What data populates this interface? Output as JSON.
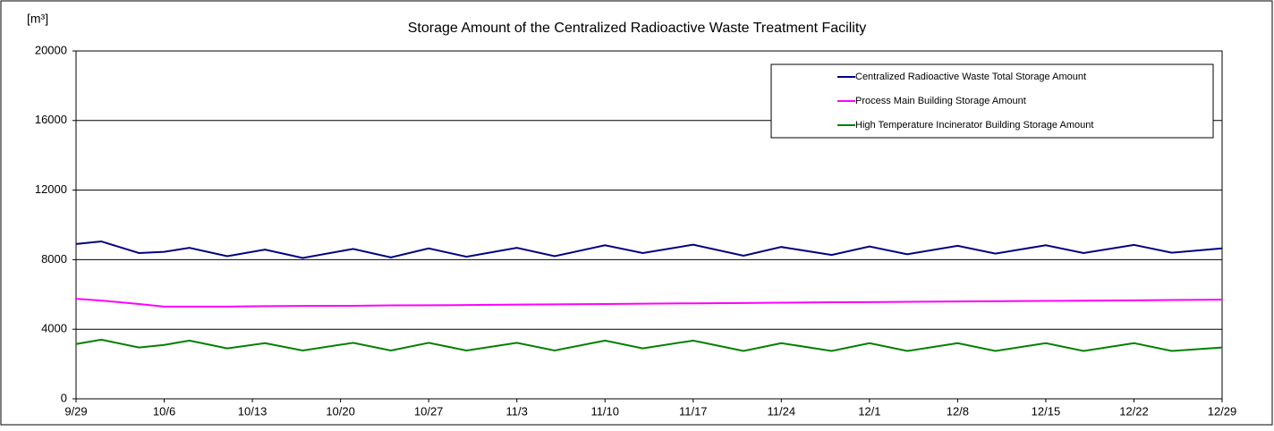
{
  "chart_data": {
    "type": "line",
    "title": "Storage Amount of the Centralized Radioactive Waste Treatment Facility",
    "y_label": "[m³]",
    "x": [
      0,
      2,
      5,
      7,
      9,
      12,
      15,
      18,
      22,
      25,
      28,
      31,
      35,
      38,
      42,
      45,
      49,
      53,
      56,
      60,
      63,
      66,
      70,
      73,
      77,
      80,
      84,
      87,
      91
    ],
    "xlim": [
      0,
      91
    ],
    "xticks": [
      {
        "value": 0,
        "label": "9/29"
      },
      {
        "value": 7,
        "label": "10/6"
      },
      {
        "value": 14,
        "label": "10/13"
      },
      {
        "value": 21,
        "label": "10/20"
      },
      {
        "value": 28,
        "label": "10/27"
      },
      {
        "value": 35,
        "label": "11/3"
      },
      {
        "value": 42,
        "label": "11/10"
      },
      {
        "value": 49,
        "label": "11/17"
      },
      {
        "value": 56,
        "label": "11/24"
      },
      {
        "value": 63,
        "label": "12/1"
      },
      {
        "value": 70,
        "label": "12/8"
      },
      {
        "value": 77,
        "label": "12/15"
      },
      {
        "value": 84,
        "label": "12/22"
      },
      {
        "value": 91,
        "label": "12/29"
      }
    ],
    "ylim": [
      0,
      20000
    ],
    "yticks": [
      0,
      4000,
      8000,
      12000,
      16000,
      20000
    ],
    "grid": true,
    "legend": "upper right",
    "series": [
      {
        "name": "Centralized Radioactive Waste Total Storage Amount",
        "color": "#000080",
        "values": [
          8900,
          9050,
          8380,
          8450,
          8680,
          8200,
          8580,
          8100,
          8620,
          8130,
          8650,
          8170,
          8680,
          8200,
          8830,
          8380,
          8860,
          8230,
          8730,
          8270,
          8760,
          8310,
          8800,
          8350,
          8830,
          8380,
          8850,
          8400,
          8650
        ]
      },
      {
        "name": "Process Main Building Storage Amount",
        "color": "#ff00ff",
        "values": [
          5750,
          5650,
          5450,
          5300,
          5300,
          5300,
          5330,
          5340,
          5350,
          5370,
          5380,
          5390,
          5420,
          5430,
          5450,
          5470,
          5490,
          5510,
          5530,
          5550,
          5560,
          5580,
          5600,
          5610,
          5630,
          5640,
          5660,
          5680,
          5700
        ]
      },
      {
        "name": "High Temperature Incinerator Building Storage Amount",
        "color": "#008000",
        "values": [
          3150,
          3400,
          2950,
          3100,
          3350,
          2900,
          3200,
          2780,
          3220,
          2780,
          3220,
          2780,
          3220,
          2780,
          3350,
          2900,
          3350,
          2750,
          3200,
          2750,
          3200,
          2750,
          3200,
          2750,
          3200,
          2750,
          3200,
          2750,
          2950
        ]
      }
    ]
  }
}
